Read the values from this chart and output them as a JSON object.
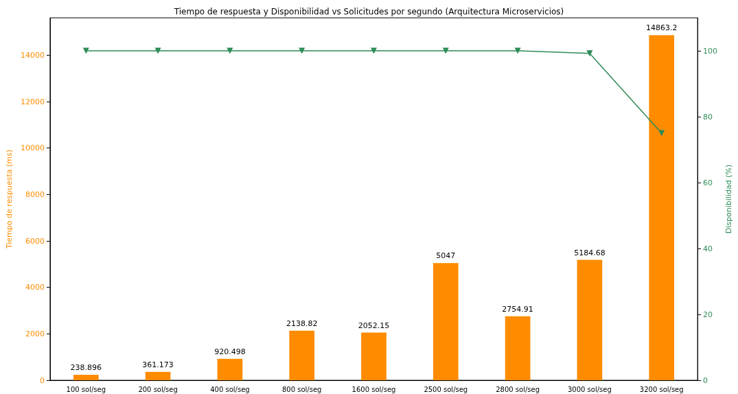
{
  "chart_data": {
    "type": "bar",
    "title": "Tiempo de respuesta y Disponibilidad vs Solicitudes por segundo (Arquitectura Microservicios)",
    "ylabel": "Tiempo de respuesta (ms)",
    "y2label": "Disponibilidad (%)",
    "categories": [
      "100 sol/seg",
      "200 sol/seg",
      "400 sol/seg",
      "800 sol/seg",
      "1600 sol/seg",
      "2500 sol/seg",
      "2800 sol/seg",
      "3000 sol/seg",
      "3200 sol/seg"
    ],
    "series": [
      {
        "color": "#ff8c00",
        "values": [
          238.896,
          361.173,
          920.498,
          2138.82,
          2052.15,
          5047,
          2754.91,
          5184.68,
          14863.2
        ],
        "value_labels": [
          "238.896",
          "361.173",
          "920.498",
          "2138.82",
          "2052.15",
          "5047",
          "2754.91",
          "5184.68",
          "14863.2"
        ]
      },
      {
        "type": "line",
        "axis": "y2",
        "color": "#2e8b57",
        "marker": "triangle",
        "values": [
          100,
          100,
          100,
          100,
          100,
          100,
          100,
          99.2,
          75
        ]
      }
    ],
    "ylim": [
      0,
      15606
    ],
    "yticks": [
      0,
      2000,
      4000,
      6000,
      8000,
      10000,
      12000,
      14000
    ],
    "y2lim": [
      0,
      110
    ],
    "y2ticks": [
      0,
      20,
      40,
      60,
      80,
      100
    ],
    "grid": false
  }
}
